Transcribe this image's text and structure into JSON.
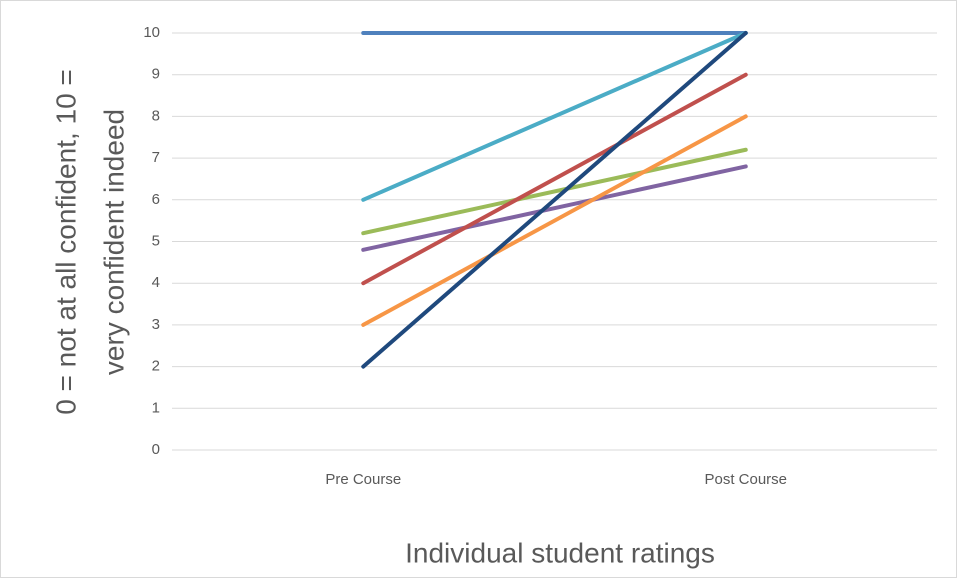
{
  "chart_data": {
    "type": "line",
    "x_label": "Individual student ratings",
    "y_label": [
      "0 = not at all confident, 10 =",
      "very confident indeed"
    ],
    "categories": [
      "Pre Course",
      "Post Course"
    ],
    "series": [
      {
        "color": "#4f81bd",
        "values": [
          10,
          10
        ]
      },
      {
        "color": "#4bacc6",
        "values": [
          6,
          10
        ]
      },
      {
        "color": "#9bbb59",
        "values": [
          5.2,
          7.2
        ]
      },
      {
        "color": "#8064a2",
        "values": [
          4.8,
          6.8
        ]
      },
      {
        "color": "#c0504d",
        "values": [
          4,
          9
        ]
      },
      {
        "color": "#f79646",
        "values": [
          3,
          8
        ]
      },
      {
        "color": "#1f497d",
        "values": [
          2,
          10
        ]
      }
    ],
    "ylim": [
      0,
      10
    ],
    "yticks": [
      0,
      1,
      2,
      3,
      4,
      5,
      6,
      7,
      8,
      9,
      10
    ],
    "grid": true
  }
}
